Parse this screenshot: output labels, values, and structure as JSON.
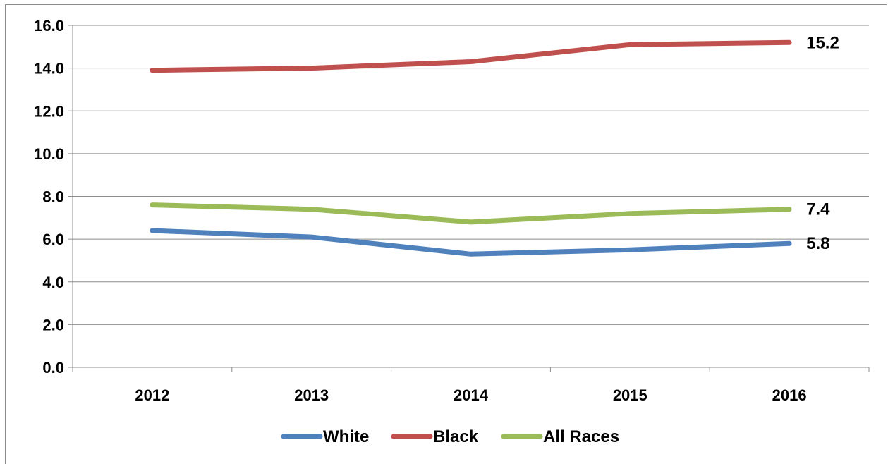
{
  "chart_data": {
    "type": "line",
    "categories": [
      "2012",
      "2013",
      "2014",
      "2015",
      "2016"
    ],
    "ylim": [
      0,
      16
    ],
    "yticks": [
      "0.0",
      "2.0",
      "4.0",
      "6.0",
      "8.0",
      "10.0",
      "12.0",
      "14.0",
      "16.0"
    ],
    "grid": true,
    "legend_position": "bottom",
    "series": [
      {
        "name": "White",
        "color": "#4F81BD",
        "values": [
          6.4,
          6.1,
          5.3,
          5.5,
          5.8
        ],
        "end_label": "5.8"
      },
      {
        "name": "Black",
        "color": "#C0504D",
        "values": [
          13.9,
          14.0,
          14.3,
          15.1,
          15.2
        ],
        "end_label": "15.2"
      },
      {
        "name": "All Races",
        "color": "#9BBB59",
        "values": [
          7.6,
          7.4,
          6.8,
          7.2,
          7.4
        ],
        "end_label": "7.4"
      }
    ]
  }
}
